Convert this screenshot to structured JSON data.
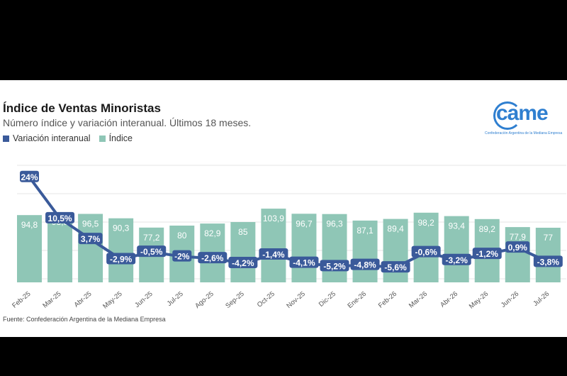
{
  "header": {
    "title": "Índice de Ventas Minoristas",
    "subtitle": "Número índice y variación interanual. Últimos 18 meses."
  },
  "logo": {
    "text": "came",
    "tagline": "Confederación Argentina de la Mediana Empresa"
  },
  "footer": {
    "source": "Fuente: Confederación Argentina de la Mediana Empresa"
  },
  "colors": {
    "bar": "#8fc6b6",
    "line": "#3a5a9a",
    "grid": "#e4e4e4",
    "logo": "#2f7fd0"
  },
  "chart_data": {
    "type": "bar",
    "categories": [
      "Feb-25",
      "Mar-25",
      "Abr-25",
      "May-25",
      "Jun-25",
      "Jul-25",
      "Ago-25",
      "Sep-25",
      "Oct-25",
      "Nov-25",
      "Dic-25",
      "Ene-26",
      "Feb-26",
      "Mar-26",
      "Abr-26",
      "May-26",
      "Jun-26",
      "Jul-26"
    ],
    "series": [
      {
        "name": "Índice",
        "kind": "bar",
        "values": [
          94.8,
          98.8,
          96.5,
          90.3,
          77.2,
          80,
          82.9,
          85,
          103.9,
          96.7,
          96.3,
          87.1,
          89.4,
          98.2,
          93.4,
          89.2,
          77.9,
          77
        ],
        "labels": [
          "94,8",
          "98,8",
          "96,5",
          "90,3",
          "77,2",
          "80",
          "82,9",
          "85",
          "103,9",
          "96,7",
          "96,3",
          "87,1",
          "89,4",
          "98,2",
          "93,4",
          "89,2",
          "77,9",
          "77"
        ]
      },
      {
        "name": "Variación interanual",
        "kind": "line",
        "values": [
          24,
          10.5,
          3.7,
          -2.9,
          -0.5,
          -2,
          -2.6,
          -4.2,
          -1.4,
          -4.1,
          -5.2,
          -4.8,
          -5.6,
          -0.6,
          -3.2,
          -1.2,
          0.9,
          -3.8
        ],
        "labels": [
          "24%",
          "10,5%",
          "3,7%",
          "-2,9%",
          "-0,5%",
          "-2%",
          "-2,6%",
          "-4,2%",
          "-1,4%",
          "-4,1%",
          "-5,2%",
          "-4,8%",
          "-5,6%",
          "-0,6%",
          "-3,2%",
          "-1,2%",
          "0,9%",
          "-3,8%"
        ]
      }
    ],
    "y_bar_range": [
      0,
      105
    ],
    "y_line_range": [
      -15,
      24
    ],
    "grid": true,
    "legend_position": "top-left"
  }
}
